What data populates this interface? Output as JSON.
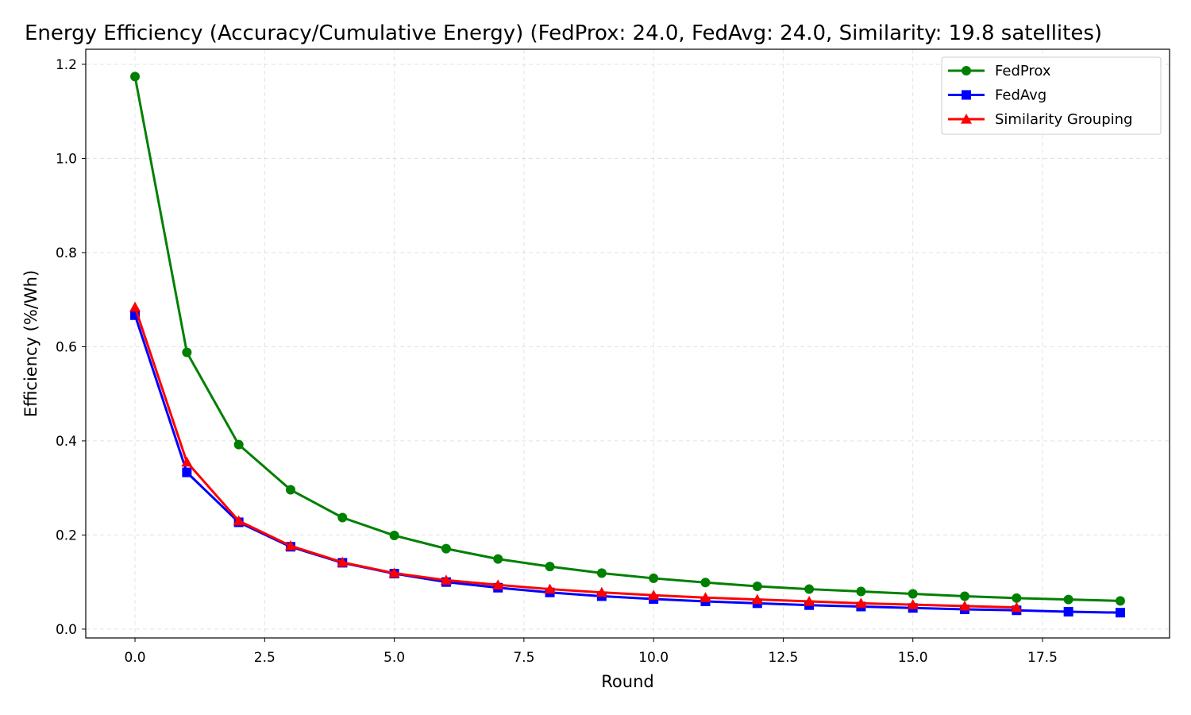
{
  "chart_data": {
    "type": "line",
    "title": "Energy Efficiency (Accuracy/Cumulative Energy) (FedProx: 24.0, FedAvg: 24.0, Similarity: 19.8 satellites)",
    "xlabel": "Round",
    "ylabel": "Efficiency (%/Wh)",
    "xlim": [
      -0.95,
      19.95
    ],
    "ylim": [
      -0.0187,
      1.232
    ],
    "xticks": [
      0.0,
      2.5,
      5.0,
      7.5,
      10.0,
      12.5,
      15.0,
      17.5
    ],
    "xtick_labels": [
      "0.0",
      "2.5",
      "5.0",
      "7.5",
      "10.0",
      "12.5",
      "15.0",
      "17.5"
    ],
    "yticks": [
      0.0,
      0.2,
      0.4,
      0.6,
      0.8,
      1.0,
      1.2
    ],
    "ytick_labels": [
      "0.0",
      "0.2",
      "0.4",
      "0.6",
      "0.8",
      "1.0",
      "1.2"
    ],
    "grid": true,
    "legend_position": "top-right",
    "series": [
      {
        "name": "FedProx",
        "color": "#008000",
        "marker": "circle",
        "x": [
          0,
          1,
          2,
          3,
          4,
          5,
          6,
          7,
          8,
          9,
          10,
          11,
          12,
          13,
          14,
          15,
          16,
          17,
          18,
          19
        ],
        "values": [
          1.174,
          0.588,
          0.392,
          0.296,
          0.237,
          0.199,
          0.171,
          0.149,
          0.133,
          0.119,
          0.108,
          0.099,
          0.091,
          0.085,
          0.08,
          0.075,
          0.07,
          0.066,
          0.063,
          0.06
        ]
      },
      {
        "name": "FedAvg",
        "color": "#0000ff",
        "marker": "square",
        "x": [
          0,
          1,
          2,
          3,
          4,
          5,
          6,
          7,
          8,
          9,
          10,
          11,
          12,
          13,
          14,
          15,
          16,
          17,
          18,
          19
        ],
        "values": [
          0.667,
          0.333,
          0.227,
          0.175,
          0.141,
          0.118,
          0.1,
          0.088,
          0.078,
          0.07,
          0.064,
          0.059,
          0.055,
          0.051,
          0.048,
          0.045,
          0.042,
          0.04,
          0.037,
          0.035
        ]
      },
      {
        "name": "Similarity Grouping",
        "color": "#ff0000",
        "marker": "triangle",
        "x": [
          0,
          1,
          2,
          3,
          4,
          5,
          6,
          7,
          8,
          9,
          10,
          11,
          12,
          13,
          14,
          15,
          16,
          17
        ],
        "values": [
          0.684,
          0.355,
          0.23,
          0.177,
          0.142,
          0.119,
          0.104,
          0.094,
          0.085,
          0.078,
          0.072,
          0.067,
          0.063,
          0.059,
          0.055,
          0.052,
          0.049,
          0.046
        ]
      }
    ]
  }
}
